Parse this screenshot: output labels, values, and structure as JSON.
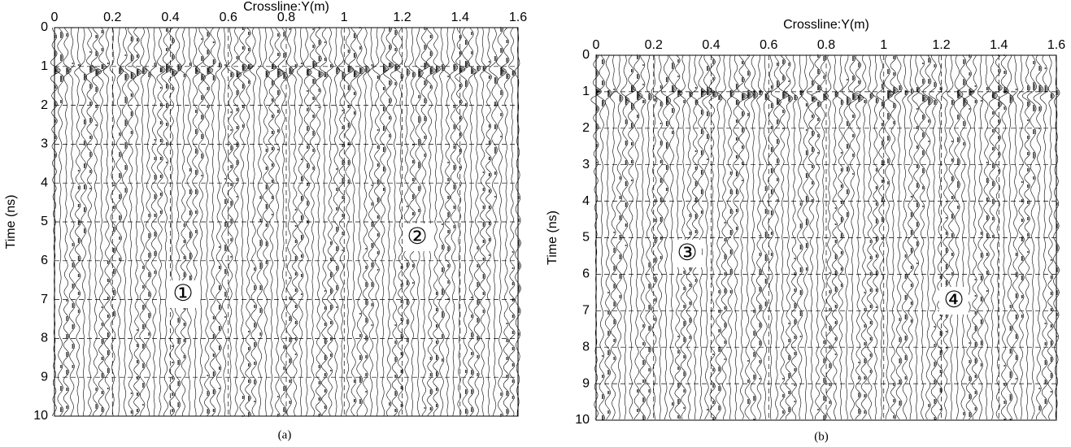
{
  "chart_data": [
    {
      "type": "wiggle",
      "title": "Crossline:Y(m)",
      "ylabel": "Time (ns)",
      "caption": "(a)",
      "annotations": [
        "①",
        "②"
      ],
      "xlim": [
        0,
        1.6
      ],
      "xticks": [
        0,
        0.2,
        0.4,
        0.6,
        0.8,
        1,
        1.2,
        1.4,
        1.6
      ],
      "ylim": [
        0,
        10
      ],
      "yticks": [
        0,
        1,
        2,
        3,
        4,
        5,
        6,
        7,
        8,
        9,
        10
      ],
      "y_inverted": true,
      "grid": true
    },
    {
      "type": "wiggle",
      "title": "Crossline:Y(m)",
      "ylabel": "Time (ns)",
      "caption": "(b)",
      "annotations": [
        "③",
        "④"
      ],
      "xlim": [
        0,
        1.6
      ],
      "xticks": [
        0,
        0.2,
        0.4,
        0.6,
        0.8,
        1,
        1.2,
        1.4,
        1.6
      ],
      "ylim": [
        0,
        10
      ],
      "yticks": [
        0,
        1,
        2,
        3,
        4,
        5,
        6,
        7,
        8,
        9,
        10
      ],
      "y_inverted": true,
      "grid": true
    }
  ]
}
